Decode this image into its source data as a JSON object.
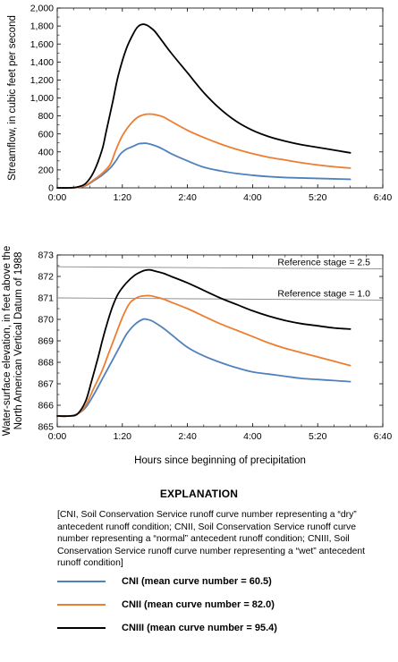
{
  "chart_data": [
    {
      "type": "line",
      "xlabel": "",
      "ylabel": "Streamflow, in cubic feet per second",
      "xlim": [
        0,
        400
      ],
      "ylim": [
        0,
        2000
      ],
      "x_ticks": [
        0,
        80,
        160,
        240,
        320,
        400
      ],
      "x_tick_labels": [
        "0:00",
        "1:20",
        "2:40",
        "4:00",
        "5:20",
        "6:40"
      ],
      "y_ticks": [
        0,
        200,
        400,
        600,
        800,
        1000,
        1200,
        1400,
        1600,
        1800,
        2000
      ],
      "y_tick_labels": [
        "0",
        "200",
        "400",
        "600",
        "800",
        "1,000",
        "1,200",
        "1,400",
        "1,600",
        "1,800",
        "2,000"
      ],
      "series": [
        {
          "name": "CNI (mean curve number = 60.5)",
          "color": "#4f81bd",
          "x": [
            0,
            15,
            25,
            35,
            45,
            55,
            65,
            72,
            78,
            85,
            90,
            95,
            100,
            105,
            110,
            120,
            130,
            140,
            160,
            180,
            200,
            220,
            240,
            260,
            280,
            300,
            320,
            340,
            360
          ],
          "y": [
            0,
            0,
            5,
            25,
            80,
            140,
            220,
            300,
            380,
            430,
            450,
            470,
            490,
            495,
            495,
            470,
            430,
            380,
            300,
            230,
            190,
            160,
            140,
            125,
            115,
            110,
            105,
            100,
            95
          ]
        },
        {
          "name": "CNII (mean curve number = 82.0)",
          "color": "#ed7d31",
          "x": [
            0,
            15,
            25,
            35,
            45,
            55,
            65,
            72,
            80,
            90,
            98,
            105,
            110,
            115,
            120,
            130,
            140,
            160,
            180,
            200,
            220,
            240,
            260,
            280,
            300,
            320,
            340,
            360
          ],
          "y": [
            0,
            0,
            5,
            30,
            90,
            160,
            260,
            420,
            580,
            710,
            780,
            810,
            820,
            820,
            815,
            790,
            740,
            640,
            560,
            490,
            430,
            380,
            340,
            310,
            280,
            255,
            235,
            220
          ]
        },
        {
          "name": "CNIII (mean curve number = 95.4)",
          "color": "#000000",
          "x": [
            0,
            15,
            25,
            35,
            45,
            55,
            60,
            68,
            75,
            85,
            95,
            100,
            105,
            110,
            115,
            120,
            130,
            140,
            160,
            180,
            200,
            220,
            240,
            260,
            280,
            300,
            320,
            340,
            360
          ],
          "y": [
            0,
            0,
            10,
            50,
            180,
            420,
            620,
            950,
            1250,
            1550,
            1740,
            1800,
            1820,
            1810,
            1780,
            1740,
            1620,
            1500,
            1280,
            1060,
            880,
            740,
            640,
            570,
            520,
            480,
            450,
            420,
            390
          ]
        }
      ]
    },
    {
      "type": "line",
      "xlabel": "Hours since beginning of precipitation",
      "ylabel_lines": [
        "Water-surface elevation, in feet above the",
        "North American Vertical Datum of 1988"
      ],
      "xlim": [
        0,
        400
      ],
      "ylim": [
        865,
        873
      ],
      "x_ticks": [
        0,
        80,
        160,
        240,
        320,
        400
      ],
      "x_tick_labels": [
        "0:00",
        "1:20",
        "2:40",
        "4:00",
        "5:20",
        "6:40"
      ],
      "y_ticks": [
        865,
        866,
        867,
        868,
        869,
        870,
        871,
        872,
        873
      ],
      "y_tick_labels": [
        "865",
        "866",
        "867",
        "868",
        "869",
        "870",
        "871",
        "872",
        "873"
      ],
      "reference_lines": [
        {
          "label": "Reference stage = 2.5",
          "y_start": 872.45,
          "y_end": 872.35
        },
        {
          "label": "Reference stage = 1.0",
          "y_start": 871.0,
          "y_end": 870.9
        }
      ],
      "series": [
        {
          "name": "CNI (mean curve number = 60.5)",
          "color": "#4f81bd",
          "x": [
            0,
            15,
            25,
            35,
            45,
            55,
            65,
            75,
            85,
            95,
            105,
            110,
            115,
            120,
            130,
            140,
            160,
            180,
            200,
            220,
            240,
            260,
            280,
            300,
            320,
            340,
            360
          ],
          "y": [
            865.5,
            865.5,
            865.6,
            865.9,
            866.5,
            867.2,
            867.9,
            868.6,
            869.3,
            869.75,
            870.0,
            870.0,
            869.95,
            869.85,
            869.6,
            869.3,
            868.7,
            868.3,
            868.0,
            867.75,
            867.55,
            867.45,
            867.35,
            867.25,
            867.2,
            867.15,
            867.1
          ]
        },
        {
          "name": "CNII (mean curve number = 82.0)",
          "color": "#ed7d31",
          "x": [
            0,
            15,
            25,
            35,
            45,
            55,
            62,
            70,
            78,
            85,
            90,
            95,
            100,
            108,
            115,
            120,
            130,
            140,
            160,
            180,
            200,
            220,
            240,
            260,
            280,
            300,
            320,
            340,
            360
          ],
          "y": [
            865.5,
            865.5,
            865.6,
            866.0,
            866.8,
            867.6,
            868.3,
            869.1,
            869.9,
            870.5,
            870.8,
            870.95,
            871.05,
            871.1,
            871.1,
            871.05,
            870.95,
            870.8,
            870.5,
            870.15,
            869.8,
            869.5,
            869.2,
            868.9,
            868.65,
            868.45,
            868.25,
            868.05,
            867.85
          ]
        },
        {
          "name": "CNIII (mean curve number = 95.4)",
          "color": "#000000",
          "x": [
            0,
            15,
            25,
            35,
            42,
            50,
            56,
            62,
            68,
            75,
            85,
            95,
            105,
            110,
            115,
            120,
            130,
            140,
            160,
            180,
            200,
            220,
            240,
            260,
            280,
            300,
            320,
            340,
            360
          ],
          "y": [
            865.5,
            865.5,
            865.6,
            866.2,
            867.1,
            868.2,
            869.1,
            869.9,
            870.6,
            871.2,
            871.7,
            872.05,
            872.25,
            872.3,
            872.3,
            872.25,
            872.15,
            872.0,
            871.7,
            871.35,
            871.0,
            870.7,
            870.4,
            870.15,
            869.95,
            869.8,
            869.7,
            869.6,
            869.55
          ]
        }
      ]
    }
  ],
  "explanation": {
    "title": "EXPLANATION",
    "note": "[CNI, Soil Conservation Service runoff curve number representing a “dry” antecedent runoff condition; CNII, Soil Conservation Service runoff curve number representing a “normal” antecedent runoff condition; CNIII, Soil Conservation Service runoff curve number representing a “wet” antecedent runoff condition]",
    "legend": [
      {
        "label": "CNI (mean curve number = 60.5)",
        "color": "#4f81bd"
      },
      {
        "label": "CNII (mean curve number = 82.0)",
        "color": "#ed7d31"
      },
      {
        "label": "CNIII (mean curve number = 95.4)",
        "color": "#000000"
      }
    ]
  }
}
